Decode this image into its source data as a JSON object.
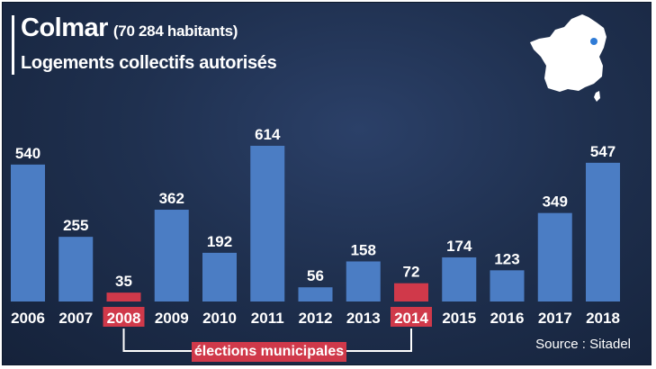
{
  "header": {
    "title": "Colmar",
    "population": "(70 284 habitants)",
    "subtitle": "Logements collectifs autorisés"
  },
  "annotation": {
    "label": "élections municipales",
    "years": [
      "2008",
      "2014"
    ]
  },
  "source": "Source : Sitadel",
  "colors": {
    "background": "#1d2d48",
    "bar": "#4b7dc4",
    "highlight": "#d0394a",
    "text": "#ffffff",
    "map": "#ffffff",
    "map_marker": "#2f7bd6"
  },
  "icons": {
    "map": "france-map-icon"
  },
  "chart_data": {
    "type": "bar",
    "title": "Logements collectifs autorisés",
    "categories": [
      "2006",
      "2007",
      "2008",
      "2009",
      "2010",
      "2011",
      "2012",
      "2013",
      "2014",
      "2015",
      "2016",
      "2017",
      "2018"
    ],
    "values": [
      540,
      255,
      35,
      362,
      192,
      614,
      56,
      158,
      72,
      174,
      123,
      349,
      547
    ],
    "highlighted_categories": [
      "2008",
      "2014"
    ],
    "ylim": [
      0,
      614
    ],
    "grid": false,
    "legend": "none"
  }
}
